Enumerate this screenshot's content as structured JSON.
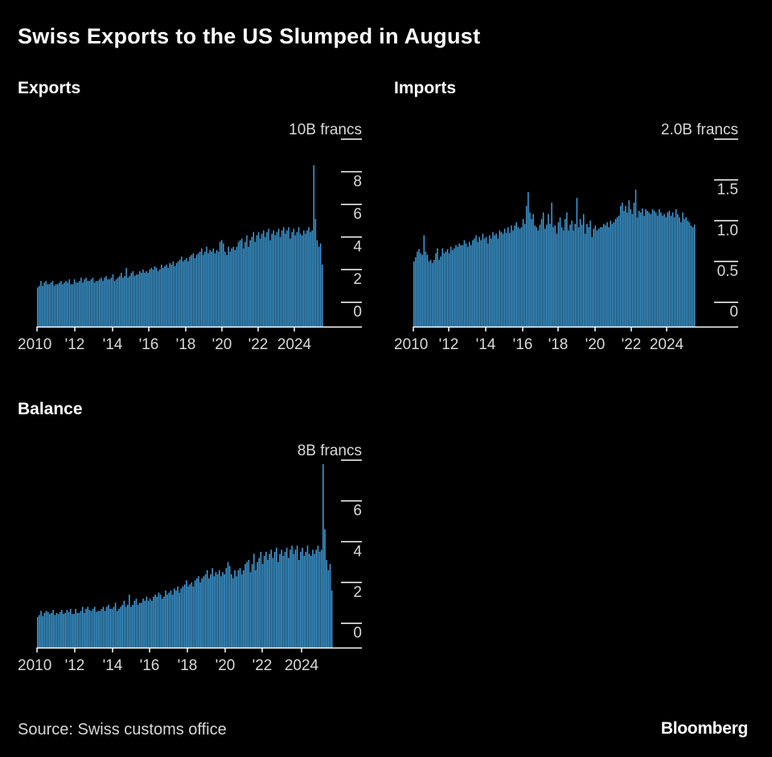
{
  "title": "Swiss Exports to the US Slumped in August",
  "source": "Source: Swiss customs office",
  "brand": "Bloomberg",
  "colors": {
    "bar": "#3f9fdc",
    "background": "#000000",
    "axis": "#ffffff",
    "text": "#d8d8d8"
  },
  "chart_data": [
    {
      "id": "exports",
      "type": "bar",
      "title": "Exports",
      "unit_label": "10B francs",
      "x_tick_labels": [
        "2010",
        "'12",
        "'14",
        "'16",
        "'18",
        "'20",
        "'22",
        "2024"
      ],
      "x_tick_positions": [
        2010,
        2012,
        2014,
        2016,
        2018,
        2020,
        2022,
        2024
      ],
      "y_tick_labels": [
        "0",
        "2",
        "4",
        "6",
        "8",
        "10B francs"
      ],
      "ylim": [
        -1,
        10
      ],
      "x": "monthly, Jan 2010 – Aug 2025",
      "values": [
        1.4,
        1.5,
        1.8,
        1.5,
        1.7,
        1.8,
        1.6,
        1.6,
        1.7,
        1.8,
        1.5,
        1.6,
        1.6,
        1.7,
        1.8,
        1.6,
        1.7,
        1.8,
        1.7,
        1.9,
        1.6,
        1.6,
        1.9,
        1.7,
        1.7,
        1.8,
        2,
        1.7,
        1.9,
        2,
        1.8,
        1.8,
        1.9,
        2,
        1.7,
        1.8,
        1.8,
        1.9,
        2,
        1.8,
        2,
        2.1,
        1.9,
        1.9,
        2,
        2.2,
        1.8,
        1.9,
        2,
        2.1,
        2.3,
        2,
        2.1,
        2.6,
        2,
        2.1,
        2.3,
        2.4,
        2.1,
        2.2,
        2.2,
        2.4,
        2.3,
        2.5,
        2.3,
        2.4,
        2.3,
        2.5,
        2.6,
        2.5,
        2.7,
        2.6,
        2.4,
        2.5,
        2.8,
        2.6,
        2.7,
        2.8,
        2.6,
        2.9,
        2.8,
        3,
        2.7,
        2.9,
        3,
        3.1,
        3.3,
        3,
        3.1,
        3.2,
        3,
        3.3,
        3.4,
        3.5,
        3.2,
        3.4,
        3.5,
        3.6,
        3.8,
        3.4,
        3.6,
        3.9,
        3.5,
        3.7,
        3.6,
        3.8,
        3.5,
        3.7,
        3.6,
        4.2,
        4.3,
        4.1,
        3.6,
        3.4,
        3.9,
        3.6,
        3.8,
        3.9,
        3.7,
        3.9,
        4.2,
        4.3,
        4.4,
        3.8,
        4.2,
        4.6,
        3.9,
        4.3,
        4.5,
        4.8,
        4.2,
        4.6,
        4.8,
        4.4,
        4.7,
        4.9,
        4.5,
        4.8,
        5,
        4.3,
        4.7,
        4.9,
        4.6,
        4.8,
        5,
        4.5,
        4.9,
        5.1,
        4.7,
        4.9,
        5.1,
        4.4,
        4.8,
        5,
        4.6,
        4.8,
        5.1,
        4.7,
        4.6,
        4.9,
        4.7,
        4.9,
        5.1,
        4.8,
        4.9,
        8.9,
        5.6,
        4.3,
        3.9,
        4.1,
        2.8
      ]
    },
    {
      "id": "imports",
      "type": "bar",
      "title": "Imports",
      "unit_label": "2.0B francs",
      "x_tick_labels": [
        "2010",
        "'12",
        "'14",
        "'16",
        "'18",
        "'20",
        "'22",
        "2024"
      ],
      "x_tick_positions": [
        2010,
        2012,
        2014,
        2016,
        2018,
        2020,
        2022,
        2024
      ],
      "y_tick_labels": [
        "0",
        "0.5",
        "1.0",
        "1.5",
        "2.0B francs"
      ],
      "ylim": [
        -0.2,
        2
      ],
      "x": "monthly, Jan 2010 – Jul 2025",
      "values": [
        0.6,
        0.65,
        0.72,
        0.75,
        0.7,
        0.68,
        0.92,
        0.72,
        0.68,
        0.6,
        0.62,
        0.58,
        0.62,
        0.7,
        0.76,
        0.62,
        0.66,
        0.76,
        0.7,
        0.72,
        0.75,
        0.7,
        0.78,
        0.74,
        0.76,
        0.8,
        0.78,
        0.82,
        0.8,
        0.8,
        0.86,
        0.82,
        0.78,
        0.84,
        0.8,
        0.86,
        0.88,
        0.92,
        0.84,
        0.9,
        0.86,
        0.94,
        0.88,
        0.9,
        0.82,
        0.92,
        0.88,
        0.96,
        0.92,
        0.94,
        0.88,
        0.98,
        0.96,
        0.94,
        1.0,
        0.95,
        1.02,
        0.95,
        1.04,
        0.98,
        1.04,
        1.08,
        1.02,
        1.0,
        1.02,
        1.12,
        1.06,
        1.28,
        1.45,
        1.2,
        1.12,
        1.18,
        1.04,
        1.02,
        0.98,
        1.05,
        1.12,
        1.2,
        1.0,
        1.05,
        1.18,
        1.06,
        1.32,
        1.02,
        1.04,
        0.94,
        1.08,
        1.14,
        1.02,
        0.98,
        1.12,
        1.2,
        0.98,
        1.05,
        1.1,
        0.98,
        1.06,
        1.38,
        1.02,
        1.12,
        1.05,
        1.18,
        0.94,
        1.06,
        1.02,
        1.1,
        0.9,
        1.0,
        1.04,
        0.98,
        1.0,
        1.02,
        1.02,
        1.06,
        1.04,
        1.08,
        1.02,
        1.1,
        1.06,
        1.08,
        1.12,
        1.14,
        1.16,
        1.28,
        1.32,
        1.22,
        1.28,
        1.2,
        1.35,
        1.24,
        1.18,
        1.32,
        1.48,
        1.14,
        1.22,
        1.2,
        1.25,
        1.16,
        1.24,
        1.22,
        1.2,
        1.18,
        1.24,
        1.22,
        1.2,
        1.16,
        1.24,
        1.2,
        1.16,
        1.18,
        1.14,
        1.2,
        1.22,
        1.16,
        1.2,
        1.14,
        1.24,
        1.18,
        1.14,
        1.08,
        1.2,
        1.12,
        1.14,
        1.1,
        1.08,
        1.04,
        1.02,
        1.05
      ]
    },
    {
      "id": "balance",
      "type": "bar",
      "title": "Balance",
      "unit_label": "8B francs",
      "x_tick_labels": [
        "2010",
        "'12",
        "'14",
        "'16",
        "'18",
        "'20",
        "'22",
        "2024"
      ],
      "x_tick_positions": [
        2010,
        2012,
        2014,
        2016,
        2018,
        2020,
        2022,
        2024
      ],
      "y_tick_labels": [
        "0",
        "2",
        "4",
        "6",
        "8B francs"
      ],
      "ylim": [
        -0.8,
        8
      ],
      "x": "monthly, Jan 2010 – Aug 2025",
      "values": [
        0.7,
        0.8,
        1,
        0.75,
        0.9,
        1,
        0.95,
        0.85,
        0.9,
        1.05,
        0.8,
        0.9,
        0.85,
        0.95,
        1.05,
        0.85,
        0.9,
        1.05,
        0.95,
        1.1,
        0.85,
        0.85,
        1.1,
        0.9,
        0.9,
        1,
        1.2,
        0.9,
        1.1,
        1.2,
        1.05,
        1.0,
        1.1,
        1.2,
        0.95,
        1.0,
        1.0,
        1.1,
        1.2,
        1.0,
        1.2,
        1.3,
        1.1,
        1.1,
        1.2,
        1.4,
        1.0,
        1.1,
        1.2,
        1.3,
        1.5,
        1.2,
        1.3,
        1.8,
        1.2,
        1.3,
        1.5,
        1.6,
        1.3,
        1.4,
        1.4,
        1.6,
        1.5,
        1.7,
        1.5,
        1.6,
        1.5,
        1.7,
        1.8,
        1.7,
        1.9,
        1.8,
        1.6,
        1.7,
        2.0,
        1.8,
        1.9,
        2.0,
        1.8,
        2.1,
        2.0,
        2.2,
        1.9,
        2.1,
        2.2,
        2.3,
        2.5,
        2.2,
        2.3,
        2.4,
        2.2,
        2.5,
        2.6,
        2.7,
        2.4,
        2.6,
        2.7,
        2.8,
        3.0,
        2.6,
        2.8,
        3.1,
        2.7,
        2.9,
        2.8,
        3.0,
        2.7,
        2.9,
        2.8,
        3.1,
        3.4,
        3.2,
        2.8,
        2.6,
        3.0,
        2.7,
        3.0,
        3.1,
        2.8,
        3.0,
        3.3,
        3.4,
        3.5,
        2.9,
        3.3,
        3.8,
        3.0,
        3.4,
        3.6,
        3.9,
        3.3,
        3.7,
        3.9,
        3.5,
        3.8,
        4.0,
        3.6,
        3.9,
        4.1,
        3.4,
        3.8,
        4.0,
        3.7,
        3.9,
        4.1,
        3.6,
        4.0,
        4.2,
        3.8,
        4.0,
        4.2,
        3.5,
        3.9,
        4.1,
        3.7,
        3.9,
        4.2,
        3.8,
        3.7,
        4.0,
        3.8,
        4.0,
        4.2,
        3.9,
        4.0,
        8.2,
        5.0,
        3.5,
        3.0,
        3.3,
        2.0
      ]
    }
  ]
}
